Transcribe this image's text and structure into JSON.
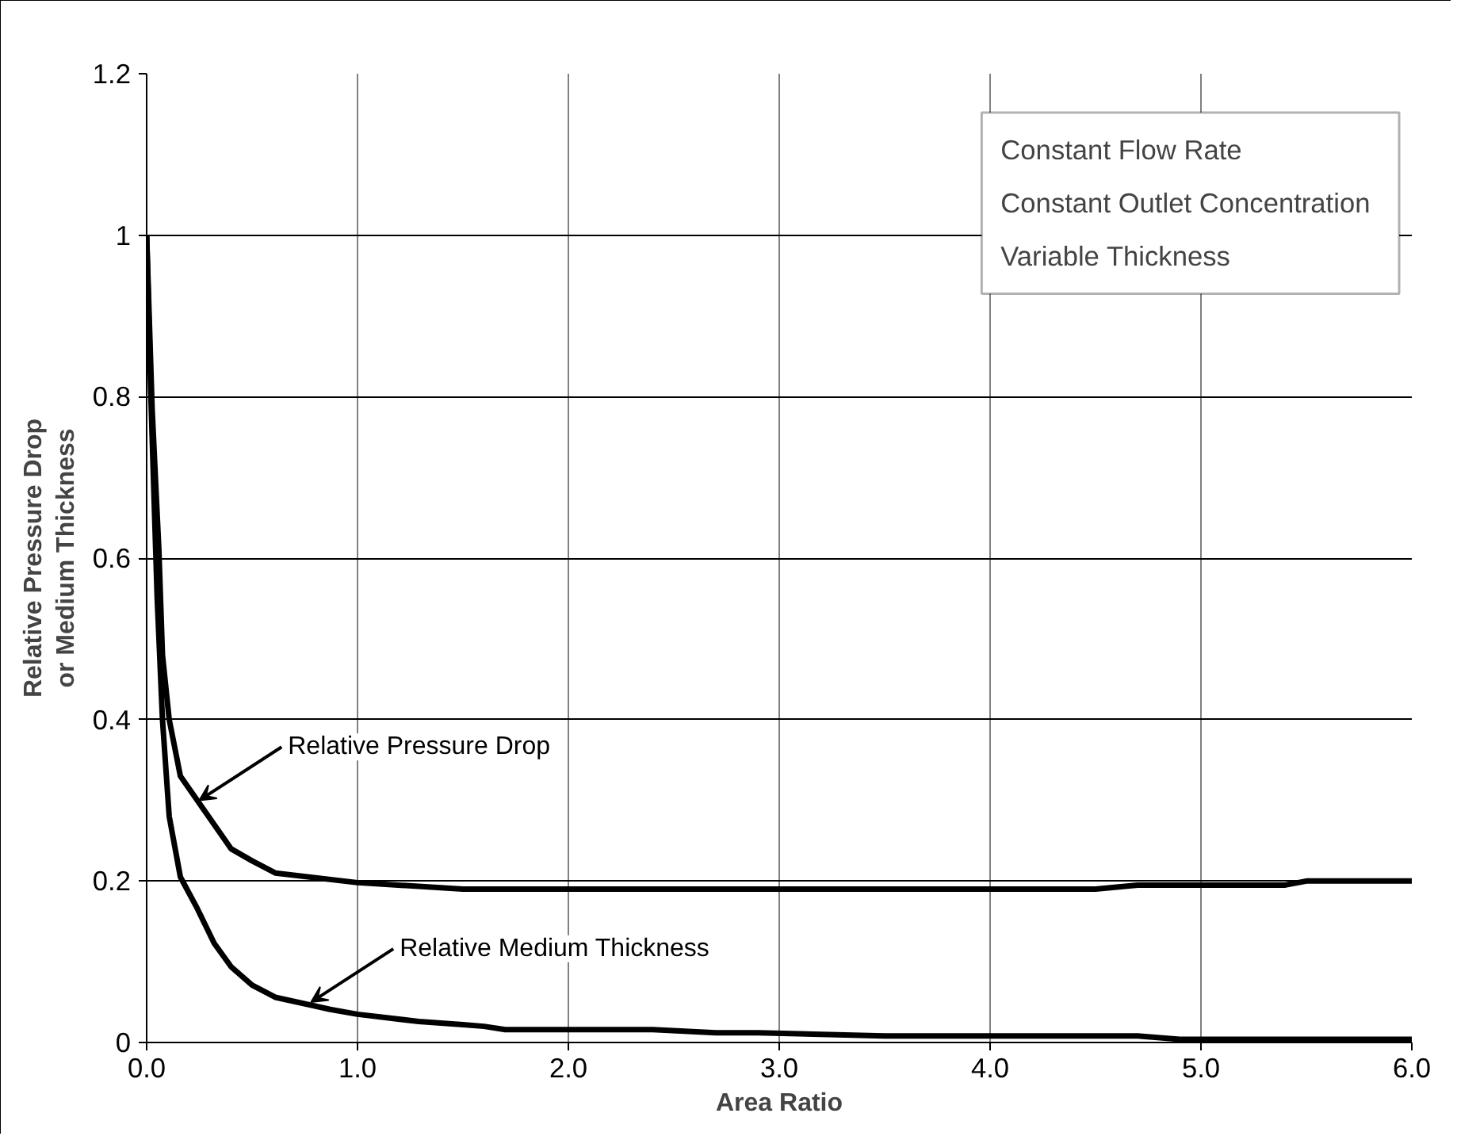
{
  "chart_data": {
    "type": "line",
    "xlabel": "Area Ratio",
    "ylabel": "Relative Pressure Drop\nor Medium Thickness",
    "xlim": [
      0,
      6
    ],
    "ylim": [
      0,
      1.2
    ],
    "xticks": [
      {
        "value": 0,
        "label": "0.0"
      },
      {
        "value": 1,
        "label": "1.0"
      },
      {
        "value": 2,
        "label": "2.0"
      },
      {
        "value": 3,
        "label": "3.0"
      },
      {
        "value": 4,
        "label": "4.0"
      },
      {
        "value": 5,
        "label": "5.0"
      },
      {
        "value": 6,
        "label": "6.0"
      }
    ],
    "yticks": [
      0,
      0.2,
      0.4,
      0.6,
      0.8,
      1,
      1.2
    ],
    "grid": true,
    "marker": "none",
    "line_style": "solid",
    "series": [
      {
        "color": "#000000",
        "x": [
          0,
          0.026,
          0.058,
          0.075,
          0.107,
          0.16,
          0.24,
          0.32,
          0.4,
          0.5,
          0.61,
          1.0,
          1.5,
          4.5,
          4.7,
          5.4,
          5.5,
          6.0
        ],
        "values": [
          1.0,
          0.785,
          0.61,
          0.48,
          0.4,
          0.33,
          0.3,
          0.27,
          0.24,
          0.225,
          0.21,
          0.198,
          0.19,
          0.19,
          0.195,
          0.195,
          0.2,
          0.2
        ]
      },
      {
        "color": "#000000",
        "x": [
          0,
          0.02,
          0.05,
          0.075,
          0.107,
          0.16,
          0.24,
          0.32,
          0.4,
          0.5,
          0.61,
          0.87,
          1.0,
          1.29,
          1.5,
          1.6,
          1.7,
          2.4,
          2.7,
          2.9,
          3.5,
          4.7,
          4.9,
          6.0
        ],
        "values": [
          1.0,
          0.8,
          0.55,
          0.4,
          0.28,
          0.205,
          0.166,
          0.123,
          0.094,
          0.071,
          0.056,
          0.041,
          0.035,
          0.026,
          0.022,
          0.02,
          0.016,
          0.016,
          0.012,
          0.012,
          0.008,
          0.008,
          0.004,
          0.004
        ]
      }
    ],
    "annotations": [
      {
        "text": "Relative Pressure Drop",
        "x": 0.25,
        "y": 0.3
      },
      {
        "text": "Relative Medium Thickness",
        "x": 0.78,
        "y": 0.05
      },
      "Constant Flow Rate",
      "Constant Outlet Concentration",
      "Variable Thickness"
    ]
  }
}
